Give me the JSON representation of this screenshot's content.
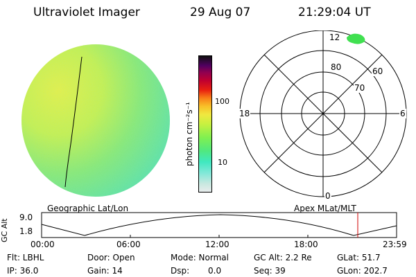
{
  "header": {
    "instrument": "Ultraviolet Imager",
    "date": "29 Aug 07",
    "time": "21:29:04 UT"
  },
  "colorbar": {
    "label": "photon cm⁻²s⁻¹",
    "ticks": [
      "100",
      "10"
    ],
    "colors": [
      "#e8ecec",
      "#c8e8e0",
      "#a0e8d8",
      "#60e8d0",
      "#40e8b0",
      "#60e870",
      "#80f050",
      "#b0f040",
      "#d8f040",
      "#f0e840",
      "#f8d030",
      "#f8a820",
      "#f88018",
      "#f04010",
      "#e01010",
      "#c00020",
      "#a00040",
      "#800060",
      "#500060",
      "#300040",
      "#101010"
    ]
  },
  "polar": {
    "title": "Apex MLat/MLT",
    "lat_labels": [
      "80",
      "70",
      "60"
    ],
    "mlt_labels": [
      "12",
      "18",
      "6",
      "0"
    ]
  },
  "earth": {
    "title": "Geographic Lat/Lon"
  },
  "alt_plot": {
    "ylabel": "GC Alt",
    "yticks": [
      "9.0",
      "1.8"
    ],
    "xticks": [
      "00:00",
      "06:00",
      "12:00",
      "18:00",
      "23:59"
    ],
    "marker_color": "#d00000"
  },
  "info": {
    "flt": "Flt: LBHL",
    "ip": "IP: 36.0",
    "door": "Door: Open",
    "gain": "Gain: 14",
    "mode": "Mode: Normal",
    "dsp_label": "Dsp:",
    "dsp_value": "0.0",
    "gc_alt": "GC Alt: 2.2 Re",
    "seq": "Seq: 39",
    "glat": "GLat: 51.7",
    "glon": "GLon: 202.7"
  }
}
